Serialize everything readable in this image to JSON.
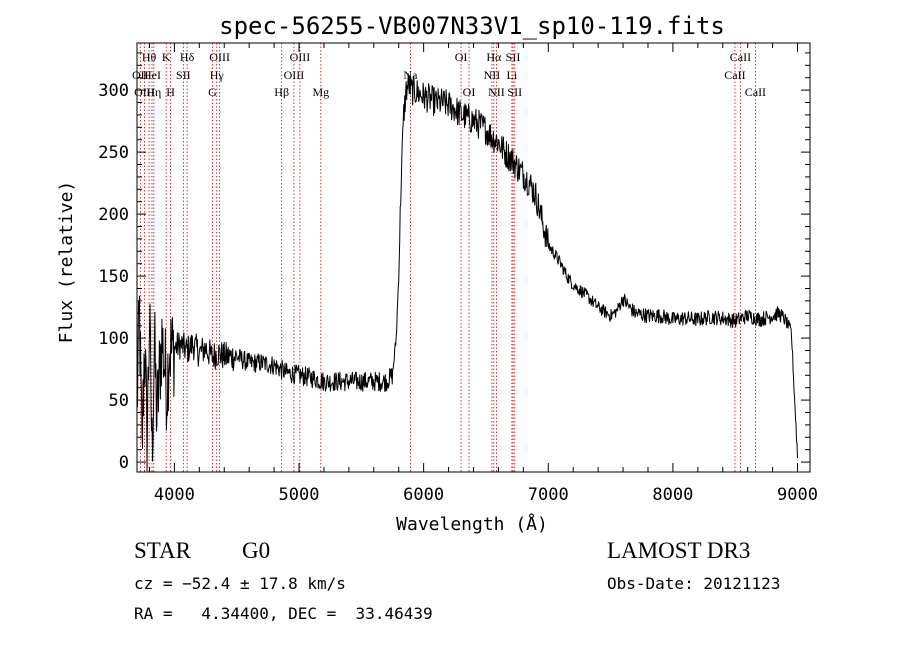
{
  "chart_data": {
    "type": "line",
    "title": "spec-56255-VB007N33V1_sp10-119.fits",
    "xlabel": "Wavelength (Å)",
    "ylabel": "Flux (relative)",
    "xlim": [
      3700,
      9100
    ],
    "ylim": [
      -8,
      338
    ],
    "xticks": [
      4000,
      5000,
      6000,
      7000,
      8000,
      9000
    ],
    "yticks": [
      0,
      50,
      100,
      150,
      200,
      250,
      300
    ],
    "grid": false,
    "series": [
      {
        "name": "flux",
        "x": [
          3700,
          3720,
          3740,
          3760,
          3780,
          3800,
          3820,
          3840,
          3860,
          3880,
          3900,
          3920,
          3940,
          3960,
          3980,
          4000,
          4050,
          4100,
          4150,
          4200,
          4250,
          4300,
          4350,
          4400,
          4500,
          4600,
          4700,
          4800,
          4850,
          4900,
          5000,
          5100,
          5200,
          5300,
          5400,
          5500,
          5600,
          5700,
          5750,
          5780,
          5800,
          5820,
          5840,
          5860,
          5880,
          5900,
          5950,
          6000,
          6050,
          6100,
          6150,
          6200,
          6250,
          6300,
          6350,
          6400,
          6450,
          6500,
          6550,
          6600,
          6650,
          6700,
          6750,
          6800,
          6850,
          6900,
          6950,
          7000,
          7050,
          7100,
          7150,
          7200,
          7300,
          7400,
          7500,
          7550,
          7600,
          7650,
          7700,
          7800,
          7900,
          8000,
          8100,
          8200,
          8300,
          8400,
          8500,
          8600,
          8700,
          8800,
          8850,
          8900,
          8950,
          9000
        ],
        "values": [
          45,
          120,
          5,
          100,
          20,
          115,
          10,
          95,
          35,
          70,
          100,
          80,
          60,
          95,
          88,
          92,
          95,
          90,
          95,
          88,
          92,
          85,
          88,
          85,
          85,
          80,
          80,
          78,
          75,
          72,
          70,
          68,
          65,
          65,
          65,
          65,
          65,
          65,
          70,
          100,
          150,
          230,
          280,
          300,
          305,
          300,
          298,
          295,
          293,
          290,
          290,
          288,
          285,
          280,
          278,
          275,
          272,
          268,
          262,
          258,
          250,
          245,
          238,
          232,
          225,
          215,
          195,
          175,
          168,
          160,
          150,
          143,
          135,
          125,
          118,
          122,
          132,
          125,
          120,
          118,
          118,
          115,
          116,
          115,
          117,
          116,
          114,
          118,
          115,
          118,
          120,
          115,
          105,
          5
        ]
      }
    ],
    "lines": [
      {
        "label": "Hθ",
        "x": 3797,
        "row": 0
      },
      {
        "label": "OII",
        "x": 3727,
        "row": 1
      },
      {
        "label": "OIII",
        "x": 3760,
        "row": 2
      },
      {
        "label": "HeI",
        "x": 3820,
        "row": 1
      },
      {
        "label": "Hη",
        "x": 3835,
        "row": 2
      },
      {
        "label": "K",
        "x": 3934,
        "row": 0
      },
      {
        "label": "SII",
        "x": 4072,
        "row": 1
      },
      {
        "label": "H",
        "x": 3969,
        "row": 2
      },
      {
        "label": "Hδ",
        "x": 4102,
        "row": 0
      },
      {
        "label": "OIII",
        "x": 4363,
        "row": 0
      },
      {
        "label": "Hγ",
        "x": 4340,
        "row": 1
      },
      {
        "label": "G",
        "x": 4305,
        "row": 2
      },
      {
        "label": "OIII",
        "x": 5007,
        "row": 0
      },
      {
        "label": "OIII",
        "x": 4959,
        "row": 1
      },
      {
        "label": "Hβ",
        "x": 4861,
        "row": 2
      },
      {
        "label": "Mg",
        "x": 5175,
        "row": 2
      },
      {
        "label": "Na",
        "x": 5894,
        "row": 1
      },
      {
        "label": "OI",
        "x": 6300,
        "row": 0
      },
      {
        "label": "OI",
        "x": 6364,
        "row": 2
      },
      {
        "label": "Hα",
        "x": 6563,
        "row": 0
      },
      {
        "label": "SII",
        "x": 6717,
        "row": 0
      },
      {
        "label": "NII",
        "x": 6548,
        "row": 1
      },
      {
        "label": "Li",
        "x": 6708,
        "row": 1
      },
      {
        "label": "NII",
        "x": 6584,
        "row": 2
      },
      {
        "label": "SII",
        "x": 6731,
        "row": 2
      },
      {
        "label": "CaII",
        "x": 8542,
        "row": 0
      },
      {
        "label": "CaII",
        "x": 8498,
        "row": 1
      },
      {
        "label": "CaII",
        "x": 8662,
        "row": 2
      }
    ]
  },
  "info": {
    "object_class": "STAR",
    "subclass": "G0",
    "survey": "LAMOST DR3",
    "cz": "cz = −52.4 ± 17.8 km/s",
    "obs_date": "Obs-Date: 20121123",
    "coords": "RA =   4.34400, DEC =  33.46439"
  }
}
